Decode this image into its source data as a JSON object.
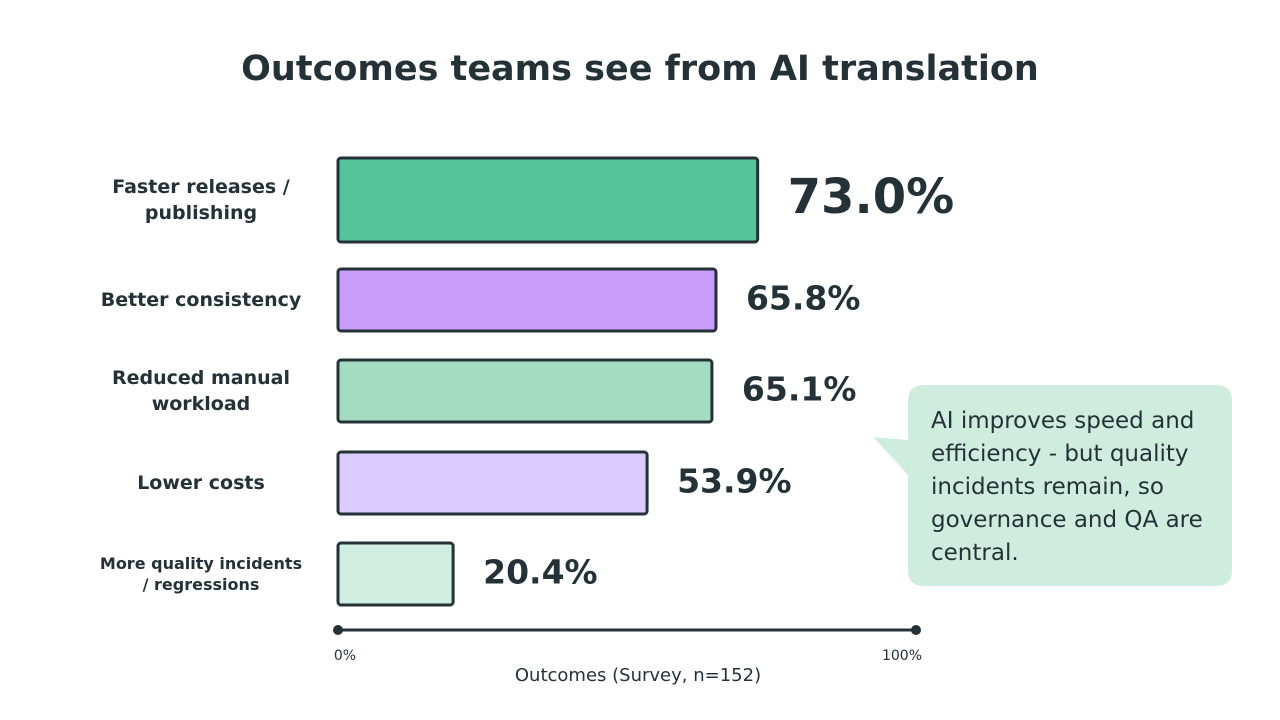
{
  "chart_data": {
    "type": "bar",
    "orientation": "horizontal",
    "title": "Outcomes teams see from AI translation",
    "categories": [
      "Faster releases / publishing",
      "Better consistency",
      "Reduced manual workload",
      "Lower costs",
      "More quality incidents / regressions"
    ],
    "values": [
      73.0,
      65.8,
      65.1,
      53.9,
      20.4
    ],
    "value_labels": [
      "73.0%",
      "65.8%",
      "65.1%",
      "53.9%",
      "20.4%"
    ],
    "colors": [
      "#56c49b",
      "#c99cfb",
      "#a3dcc3",
      "#dccbfd",
      "#cfede0"
    ],
    "xlim": [
      0,
      100
    ],
    "xticks": [
      {
        "value": 0,
        "label": "0%"
      },
      {
        "value": 100,
        "label": "100%"
      }
    ],
    "xlabel": "Outcomes (Survey, n=152)",
    "annotation": "AI improves speed and efficiency - but quality incidents remain, so governance and QA are central."
  }
}
